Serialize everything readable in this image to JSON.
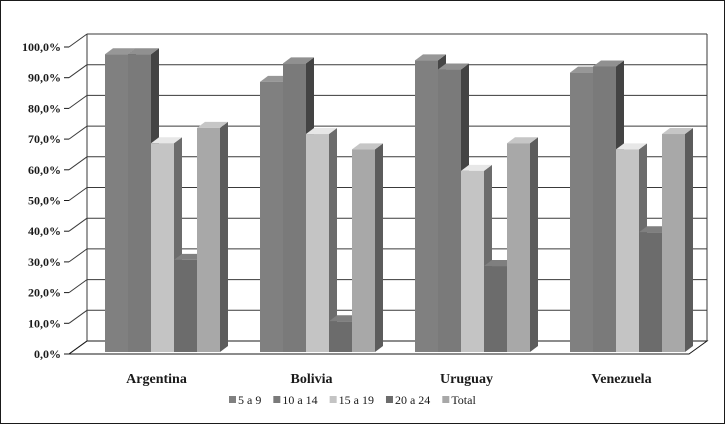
{
  "chart_data": {
    "type": "bar",
    "style": "3d-clustered-column",
    "categories": [
      "Argentina",
      "Bolivia",
      "Uruguay",
      "Venezuela"
    ],
    "series": [
      {
        "name": "5 a 9",
        "color": "#808080",
        "values": [
          97.0,
          88.0,
          95.0,
          91.0
        ]
      },
      {
        "name": "10 a 14",
        "color": "#7a7a7a",
        "values": [
          97.0,
          94.0,
          92.0,
          93.0
        ]
      },
      {
        "name": "15 a 19",
        "color": "#c4c4c4",
        "values": [
          68.0,
          71.0,
          59.0,
          66.0
        ]
      },
      {
        "name": "20 a 24",
        "color": "#6c6c6c",
        "values": [
          30.0,
          10.0,
          28.0,
          39.0
        ]
      },
      {
        "name": "Total",
        "color": "#a8a8a8",
        "values": [
          73.0,
          66.0,
          68.0,
          71.0
        ]
      }
    ],
    "y_ticks": [
      "0,0%",
      "10,0%",
      "20,0%",
      "30,0%",
      "40,0%",
      "50,0%",
      "60,0%",
      "70,0%",
      "80,0%",
      "90,0%",
      "100,0%"
    ],
    "ylim": [
      0,
      100
    ],
    "grid": true,
    "legend_position": "bottom",
    "title": "",
    "xlabel": "",
    "ylabel": ""
  }
}
